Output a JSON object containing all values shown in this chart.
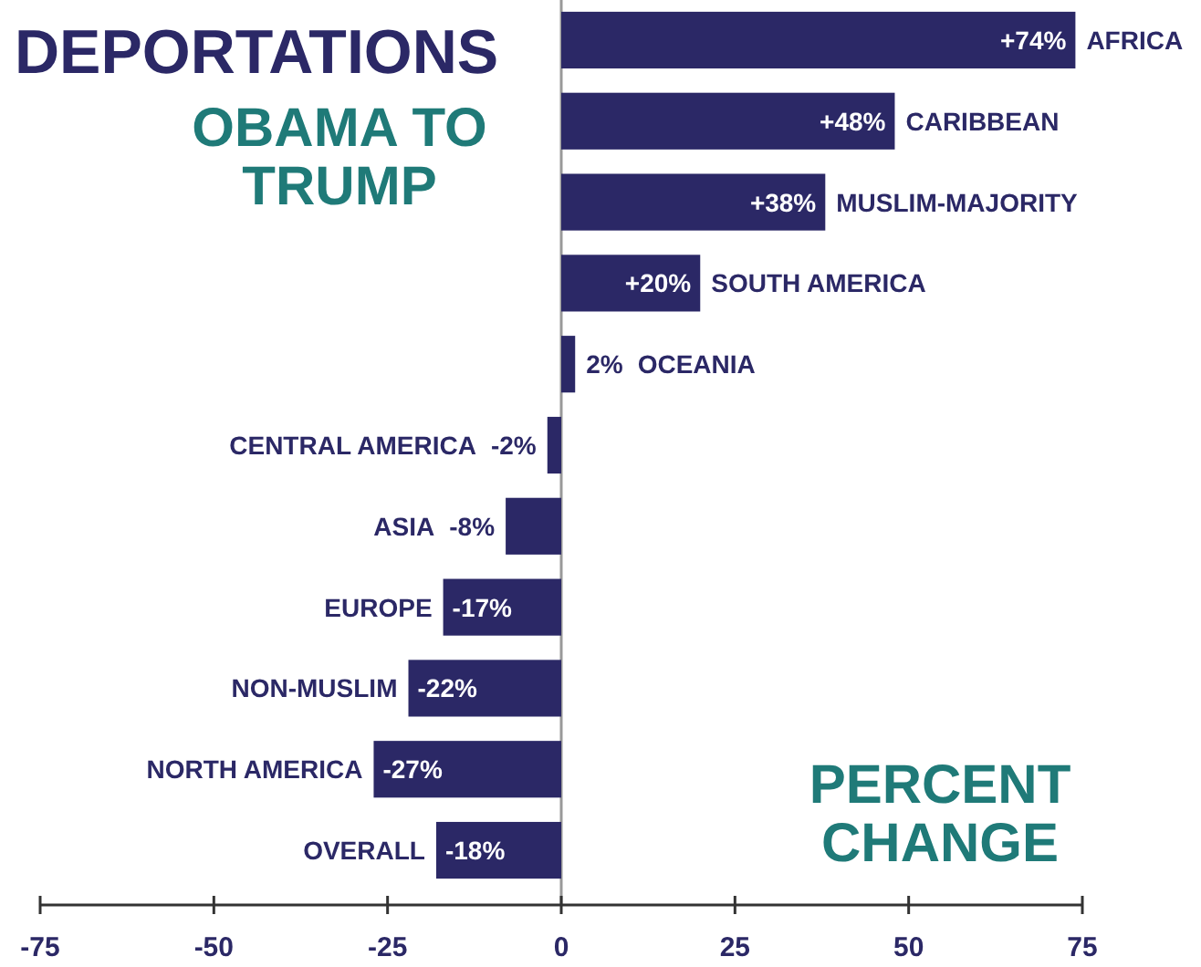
{
  "chart_data": {
    "type": "bar",
    "orientation": "horizontal",
    "title": "DEPORTATIONS",
    "subtitle": "OBAMA TO TRUMP",
    "categories": [
      "AFRICA",
      "CARIBBEAN",
      "MUSLIM-MAJORITY",
      "SOUTH AMERICA",
      "OCEANIA",
      "CENTRAL AMERICA",
      "ASIA",
      "EUROPE",
      "NON-MUSLIM",
      "NORTH AMERICA",
      "OVERALL"
    ],
    "values": [
      74,
      48,
      38,
      20,
      2,
      -2,
      -8,
      -17,
      -22,
      -27,
      -18
    ],
    "value_labels": [
      "+74%",
      "+48%",
      "+38%",
      "+20%",
      "2%",
      "-2%",
      "-8%",
      "-17%",
      "-22%",
      "-27%",
      "-18%"
    ],
    "color": "#2b2866",
    "xlim": [
      -75,
      75
    ],
    "xticks": [
      -75,
      -50,
      -25,
      0,
      25,
      50,
      75
    ],
    "annotations": [
      "PERCENT CHANGE"
    ]
  }
}
